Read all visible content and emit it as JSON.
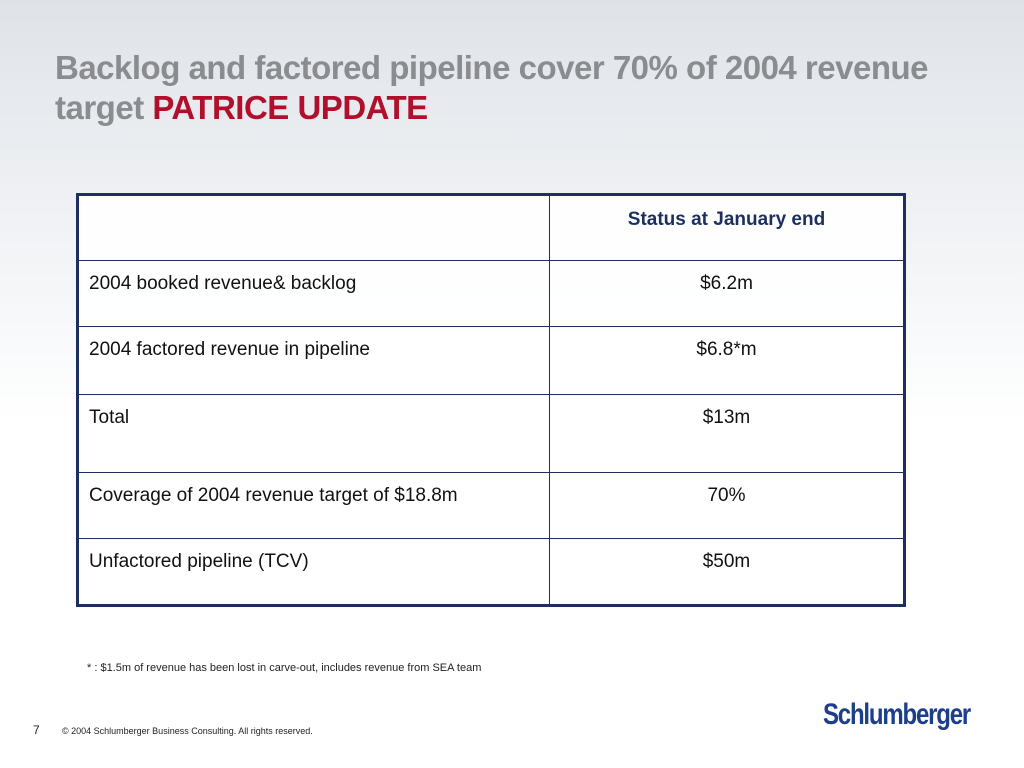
{
  "title": {
    "text": "Backlog and factored pipeline cover 70% of 2004 revenue target",
    "highlight": "PATRICE UPDATE"
  },
  "table": {
    "header": {
      "column": "Status at January end"
    },
    "rows": [
      [
        "2004 booked revenue& backlog",
        "$6.2m"
      ],
      [
        "2004 factored revenue in pipeline",
        "$6.8*m"
      ],
      [
        "Total",
        "$13m"
      ],
      [
        "Coverage of 2004 revenue target of $18.8m",
        "70%"
      ],
      [
        "Unfactored pipeline (TCV)",
        "$50m"
      ]
    ]
  },
  "footnote": "* : $1.5m of revenue has been lost in carve-out, includes revenue from SEA team",
  "footer": {
    "page_number": 7,
    "copyright": "© 2004 Schlumberger Business Consulting. All rights reserved.",
    "logo": "Schlumberger"
  }
}
